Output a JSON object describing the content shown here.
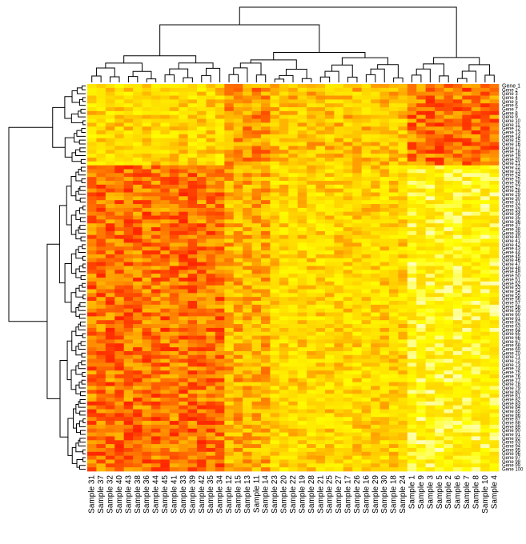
{
  "chart_data": {
    "type": "heatmap",
    "title": "",
    "xlabel": "",
    "ylabel": "",
    "color_scale": [
      "#ff0000",
      "#ff8c00",
      "#ffff00",
      "#ffffcc"
    ],
    "column_labels": [
      "Sample 31",
      "Sample 37",
      "Sample 32",
      "Sample 40",
      "Sample 43",
      "Sample 38",
      "Sample 36",
      "Sample 44",
      "Sample 45",
      "Sample 41",
      "Sample 33",
      "Sample 39",
      "Sample 42",
      "Sample 35",
      "Sample 34",
      "Sample 12",
      "Sample 15",
      "Sample 13",
      "Sample 11",
      "Sample 14",
      "Sample 23",
      "Sample 20",
      "Sample 22",
      "Sample 19",
      "Sample 28",
      "Sample 21",
      "Sample 25",
      "Sample 27",
      "Sample 17",
      "Sample 26",
      "Sample 16",
      "Sample 29",
      "Sample 30",
      "Sample 18",
      "Sample 24",
      "Sample 1",
      "Sample 9",
      "Sample 3",
      "Sample 5",
      "Sample 2",
      "Sample 6",
      "Sample 7",
      "Sample 8",
      "Sample 10",
      "Sample 4"
    ],
    "row_label_first": "Gene 1",
    "n_rows": 100,
    "column_groups": [
      {
        "members": "Sample 31 – Sample 34",
        "count": 15
      },
      {
        "members": "Sample 12 – Sample 24",
        "count": 20
      },
      {
        "members": "Sample 1 – Sample 4",
        "count": 10
      }
    ],
    "row_groups": [
      {
        "rows": "1 – 20",
        "pattern": "high in Sample 1–4 group, high in Sample 12–14"
      },
      {
        "rows": "21 – 100",
        "pattern": "high in Sample 31–34 group, low in Sample 1–4 group"
      }
    ],
    "dendrograms": {
      "columns": "top",
      "rows": "left"
    }
  }
}
